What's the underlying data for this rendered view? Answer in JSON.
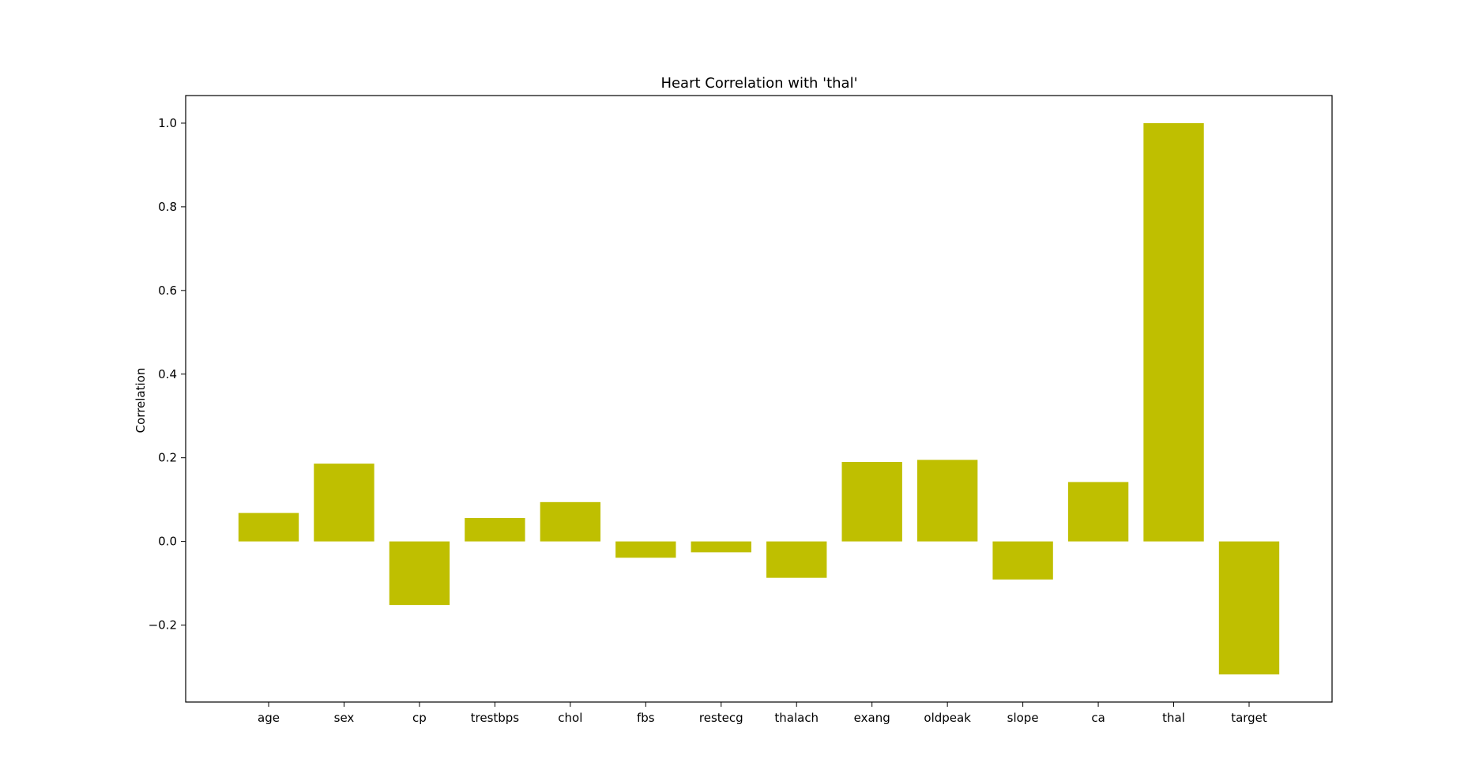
{
  "chart_data": {
    "type": "bar",
    "title": "Heart Correlation with 'thal'",
    "xlabel": "",
    "ylabel": "Correlation",
    "categories": [
      "age",
      "sex",
      "cp",
      "trestbps",
      "chol",
      "fbs",
      "restecg",
      "thalach",
      "exang",
      "oldpeak",
      "slope",
      "ca",
      "thal",
      "target"
    ],
    "values": [
      0.068,
      0.186,
      -0.152,
      0.056,
      0.094,
      -0.039,
      -0.026,
      -0.087,
      0.19,
      0.195,
      -0.091,
      0.142,
      1.0,
      -0.318
    ],
    "bar_color": "#bfbf00",
    "ylim": [
      -0.384,
      1.066
    ],
    "yticks": [
      -0.2,
      0.0,
      0.2,
      0.4,
      0.6,
      0.8,
      1.0
    ],
    "ytick_labels": [
      "−0.2",
      "0.0",
      "0.2",
      "0.4",
      "0.6",
      "0.8",
      "1.0"
    ],
    "grid": false,
    "legend": false
  }
}
